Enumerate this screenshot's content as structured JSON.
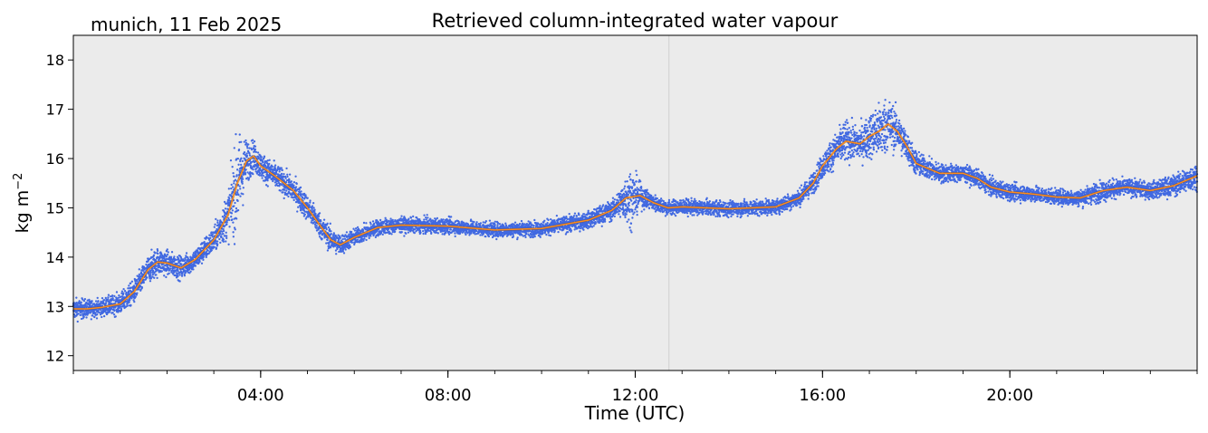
{
  "chart_data": {
    "type": "scatter",
    "title": "Retrieved column-integrated water vapour",
    "location_label": "munich, 11 Feb 2025",
    "xlabel": "Time (UTC)",
    "ylabel_base": "kg m",
    "ylabel_exponent": "−2",
    "xlim_hours": [
      0.0,
      24.0
    ],
    "ylim": [
      11.7,
      18.5
    ],
    "x_ticks": [
      {
        "hour": 4,
        "label": "04:00"
      },
      {
        "hour": 8,
        "label": "08:00"
      },
      {
        "hour": 12,
        "label": "12:00"
      },
      {
        "hour": 16,
        "label": "16:00"
      },
      {
        "hour": 20,
        "label": "20:00"
      }
    ],
    "y_ticks": [
      {
        "value": 12,
        "label": "12"
      },
      {
        "value": 13,
        "label": "13"
      },
      {
        "value": 14,
        "label": "14"
      },
      {
        "value": 15,
        "label": "15"
      },
      {
        "value": 16,
        "label": "16"
      },
      {
        "value": 17,
        "label": "17"
      },
      {
        "value": 18,
        "label": "18"
      }
    ],
    "current_time_line_hour": 12.72,
    "grid": false,
    "background_color": "#ebebeb",
    "series": [
      {
        "kind": "raw-scatter",
        "color": "#4169e1",
        "envelope_hours": [
          0.0,
          0.5,
          1.0,
          1.5,
          1.7,
          2.0,
          2.5,
          3.0,
          3.3,
          3.5,
          3.6,
          3.7,
          3.9,
          4.2,
          4.6,
          5.0,
          5.4,
          5.7,
          6.0,
          6.5,
          7.0,
          8.0,
          9.0,
          10.0,
          11.0,
          11.6,
          11.9,
          12.1,
          12.3,
          12.7,
          13.0,
          14.0,
          15.0,
          15.5,
          16.0,
          16.3,
          16.5,
          16.7,
          16.9,
          17.1,
          17.3,
          17.5,
          17.8,
          18.2,
          19.0,
          19.5,
          20.0,
          21.0,
          21.5,
          22.0,
          22.5,
          23.0,
          23.5,
          24.0
        ],
        "envelope_spread": [
          0.25,
          0.2,
          0.25,
          0.3,
          0.35,
          0.3,
          0.25,
          0.3,
          0.55,
          1.2,
          0.9,
          0.5,
          0.35,
          0.3,
          0.3,
          0.3,
          0.3,
          0.25,
          0.2,
          0.2,
          0.18,
          0.18,
          0.18,
          0.18,
          0.2,
          0.25,
          0.7,
          0.3,
          0.2,
          0.18,
          0.18,
          0.18,
          0.18,
          0.2,
          0.3,
          0.4,
          0.5,
          0.4,
          0.45,
          0.6,
          0.7,
          0.55,
          0.35,
          0.25,
          0.2,
          0.2,
          0.2,
          0.18,
          0.2,
          0.25,
          0.2,
          0.2,
          0.25,
          0.3
        ]
      },
      {
        "kind": "smoothed-line",
        "color": "#ff8c1a",
        "x_hours": [
          0.0,
          0.3,
          0.6,
          1.0,
          1.3,
          1.6,
          1.8,
          2.0,
          2.3,
          2.6,
          3.0,
          3.3,
          3.5,
          3.7,
          3.85,
          4.0,
          4.3,
          4.7,
          5.0,
          5.3,
          5.5,
          5.7,
          6.0,
          6.5,
          7.0,
          8.0,
          9.0,
          10.0,
          11.0,
          11.5,
          11.8,
          12.1,
          12.4,
          12.7,
          13.0,
          14.0,
          15.0,
          15.5,
          15.8,
          16.0,
          16.3,
          16.5,
          16.8,
          17.0,
          17.2,
          17.4,
          17.6,
          17.8,
          18.0,
          18.5,
          19.0,
          19.3,
          19.6,
          20.0,
          20.5,
          21.0,
          21.5,
          22.0,
          22.5,
          23.0,
          23.5,
          24.0
        ],
        "y": [
          12.95,
          12.95,
          12.98,
          13.05,
          13.3,
          13.75,
          13.9,
          13.88,
          13.78,
          13.95,
          14.35,
          14.85,
          15.5,
          15.95,
          16.05,
          15.85,
          15.65,
          15.35,
          15.0,
          14.6,
          14.35,
          14.25,
          14.4,
          14.6,
          14.65,
          14.63,
          14.55,
          14.58,
          14.75,
          14.95,
          15.2,
          15.25,
          15.1,
          15.0,
          15.02,
          14.98,
          15.02,
          15.2,
          15.5,
          15.85,
          16.2,
          16.35,
          16.3,
          16.45,
          16.55,
          16.7,
          16.55,
          16.25,
          15.9,
          15.7,
          15.7,
          15.6,
          15.42,
          15.32,
          15.28,
          15.22,
          15.2,
          15.35,
          15.42,
          15.35,
          15.45,
          15.65
        ]
      }
    ]
  }
}
